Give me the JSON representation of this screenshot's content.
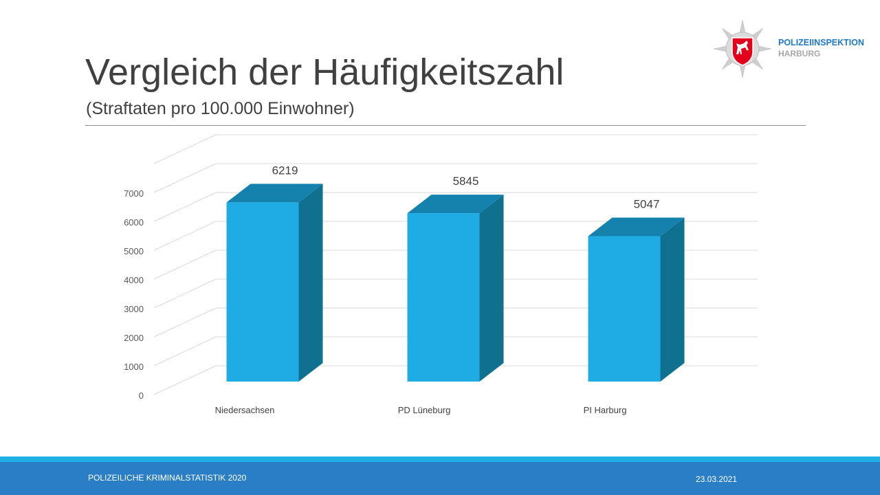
{
  "header": {
    "title": "Vergleich der Häufigkeitszahl",
    "subtitle": "(Straftaten pro 100.000 Einwohner)"
  },
  "logo": {
    "line1": "POLIZEIINSPEKTION",
    "line2": "HARBURG"
  },
  "footer": {
    "left": "POLIZEILICHE KRIMINALSTATISTIK 2020",
    "right": "23.03.2021"
  },
  "colors": {
    "bar_front": "#1fabe3",
    "bar_side": "#10708f",
    "bar_top": "#1582ad",
    "footer": "#2a7ec6",
    "footer_accent": "#1fb0e6"
  },
  "chart_data": {
    "type": "bar",
    "style": "3d",
    "title": "",
    "categories": [
      "Niedersachsen",
      "PD Lüneburg",
      "PI Harburg"
    ],
    "values": [
      6219,
      5845,
      5047
    ],
    "data_labels": [
      "6219",
      "5845",
      "5047"
    ],
    "y_ticks": [
      0,
      1000,
      2000,
      3000,
      4000,
      5000,
      6000,
      7000
    ],
    "ylim": [
      0,
      8000
    ],
    "grid": true,
    "legend": "none"
  }
}
